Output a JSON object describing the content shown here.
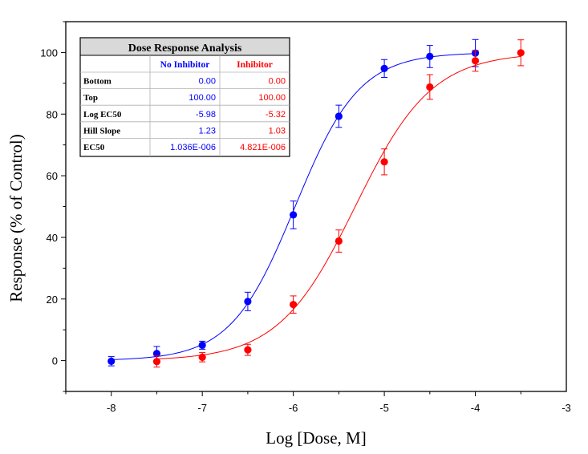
{
  "chart_data": {
    "type": "scatter",
    "title": "",
    "xlabel": "Log [Dose, M]",
    "ylabel": "Response (% of Control)",
    "xlim": [
      -8.5,
      -3
    ],
    "ylim": [
      -10,
      110
    ],
    "x_ticks": [
      -8,
      -7,
      -6,
      -5,
      -4,
      -3
    ],
    "y_ticks": [
      0,
      20,
      40,
      60,
      80,
      100
    ],
    "grid": false,
    "legend": "none",
    "series": [
      {
        "name": "No Inhibitor",
        "color": "#0000ff",
        "x": [
          -8,
          -7.5,
          -7,
          -6.5,
          -6,
          -5.5,
          -5,
          -4.5,
          -4
        ],
        "y": [
          -0.2,
          2.3,
          5.0,
          19.2,
          47.3,
          79.3,
          94.8,
          98.7,
          99.8
        ],
        "error": [
          1.5,
          2.3,
          1.3,
          3.0,
          4.5,
          3.6,
          2.9,
          3.6,
          4.4
        ],
        "fit": {
          "bottom": 0,
          "top": 100,
          "log_ec50": -5.98,
          "hill_slope": 1.23
        }
      },
      {
        "name": "Inhibitor",
        "color": "#ff0000",
        "x": [
          -7.5,
          -7,
          -6.5,
          -6,
          -5.5,
          -5,
          -4.5,
          -4,
          -3.5
        ],
        "y": [
          -0.3,
          1.1,
          3.5,
          18.2,
          38.8,
          64.5,
          88.8,
          97.3,
          99.9
        ],
        "error": [
          1.8,
          1.5,
          1.8,
          2.8,
          3.6,
          4.2,
          4.0,
          3.4,
          4.2
        ],
        "fit": {
          "bottom": 0,
          "top": 100,
          "log_ec50": -5.32,
          "hill_slope": 1.03
        }
      }
    ]
  },
  "table": {
    "title": "Dose Response Analysis",
    "col1": "No Inhibitor",
    "col2": "Inhibitor",
    "col1_color": "#0000ff",
    "col2_color": "#ff0000",
    "rows": [
      {
        "label": "Bottom",
        "v1": "0.00",
        "v2": "0.00"
      },
      {
        "label": "Top",
        "v1": "100.00",
        "v2": "100.00"
      },
      {
        "label": "Log EC50",
        "v1": "-5.98",
        "v2": "-5.32"
      },
      {
        "label": "Hill Slope",
        "v1": "1.23",
        "v2": "1.03"
      },
      {
        "label": "EC50",
        "v1": "1.036E-006",
        "v2": "4.821E-006"
      }
    ]
  }
}
